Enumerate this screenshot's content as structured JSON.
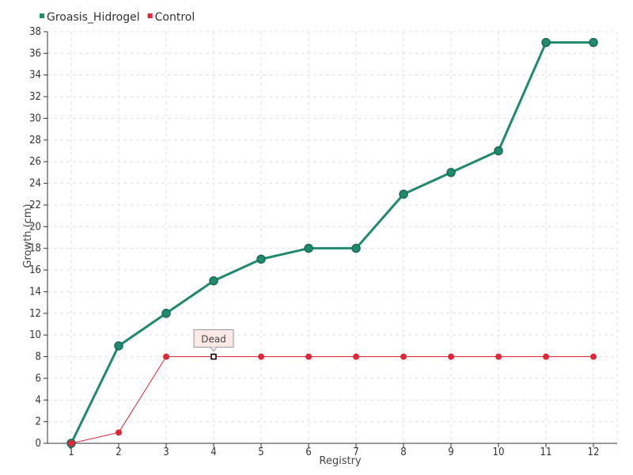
{
  "chart_data": {
    "type": "line",
    "title": "",
    "xlabel": "Registry",
    "ylabel": "Growth (cm)",
    "categories": [
      "1",
      "2",
      "3",
      "4",
      "5",
      "6",
      "7",
      "8",
      "9",
      "10",
      "11",
      "12"
    ],
    "ylim": [
      0,
      38
    ],
    "ytick_step": 2,
    "grid": true,
    "legend_position": "top-left",
    "series": [
      {
        "name": "Groasis_Hidrogel",
        "color": "#1f8a6e",
        "values": [
          0,
          9,
          12,
          15,
          17,
          18,
          18,
          23,
          25,
          27,
          37,
          37
        ]
      },
      {
        "name": "Control",
        "color": "#e32636",
        "values": [
          0,
          1,
          8,
          8,
          8,
          8,
          8,
          8,
          8,
          8,
          8,
          8
        ]
      }
    ],
    "annotations": [
      {
        "text": "Dead",
        "series": "Control",
        "category": "4",
        "value": 8
      }
    ]
  }
}
